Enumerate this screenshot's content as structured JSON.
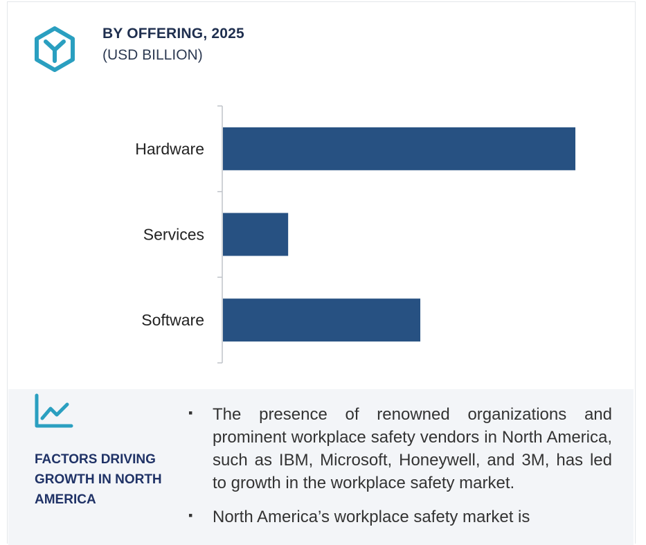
{
  "header": {
    "title": "BY OFFERING, 2025",
    "subtitle": "(USD BILLION)",
    "icon": "hexagon-y-icon"
  },
  "colors": {
    "bar": "#275182",
    "icon_teal": "#2a9fc0",
    "heading_navy": "#1f3266",
    "panel_bg": "#f3f5f8"
  },
  "chart_data": {
    "type": "bar",
    "orientation": "horizontal",
    "categories": [
      "Hardware",
      "Services",
      "Software"
    ],
    "values": [
      100,
      18.5,
      56
    ],
    "xlim": [
      0,
      100
    ],
    "grid": false,
    "value_axis_shown": false,
    "title": "BY OFFERING, 2025",
    "subtitle": "(USD BILLION)"
  },
  "factors": {
    "icon": "trend-chart-icon",
    "heading": "FACTORS DRIVING GROWTH IN NORTH AMERICA",
    "bullets": [
      "The presence of renowned organizations and prominent workplace safety vendors in North America, such as IBM, Microsoft, Honeywell, and 3M, has led to growth in the workplace safety market.",
      "North America’s workplace safety market is"
    ]
  }
}
